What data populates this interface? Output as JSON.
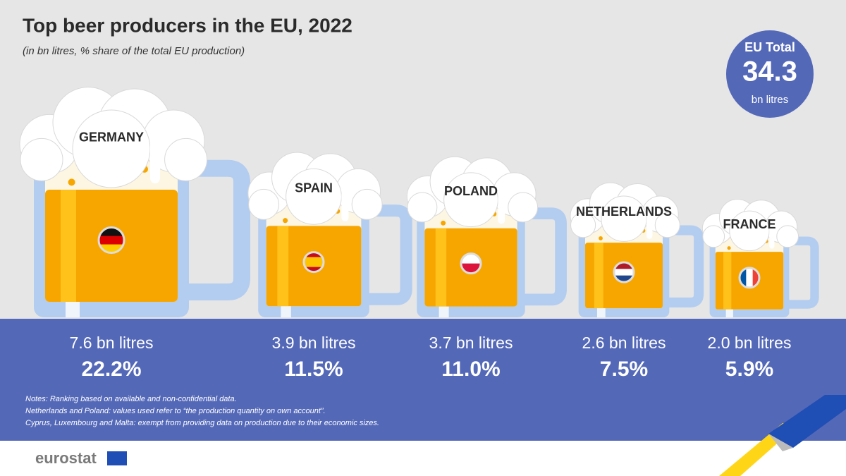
{
  "chart_data": {
    "type": "mug",
    "title": "Top beer producers in the EU, 2022",
    "subtitle": "(in bn litres, % share of the total EU production)",
    "categories": [
      "GERMANY",
      "SPAIN",
      "POLAND",
      "NETHERLANDS",
      "FRANCE"
    ],
    "values": [
      7.6,
      3.9,
      3.7,
      2.6,
      2.0
    ],
    "value_labels": [
      "7.6 bn litres",
      "3.9 bn litres",
      "3.7 bn litres",
      "2.6 bn litres",
      "2.0 bn litres"
    ],
    "shares": [
      22.2,
      11.5,
      11.0,
      7.5,
      5.9
    ],
    "share_labels": [
      "22.2%",
      "11.5%",
      "11.0%",
      "7.5%",
      "5.9%"
    ],
    "total": {
      "label": "EU Total",
      "value": 34.3,
      "unit": "bn litres"
    },
    "notes": [
      "Notes: Ranking based on available and non-confidential data.",
      "Netherlands and Poland: values used refer to “the production quantity on own account”.",
      "Cyprus, Luxembourg and Malta: exempt from providing data on production due to their economic sizes."
    ],
    "source": "eurostat"
  }
}
